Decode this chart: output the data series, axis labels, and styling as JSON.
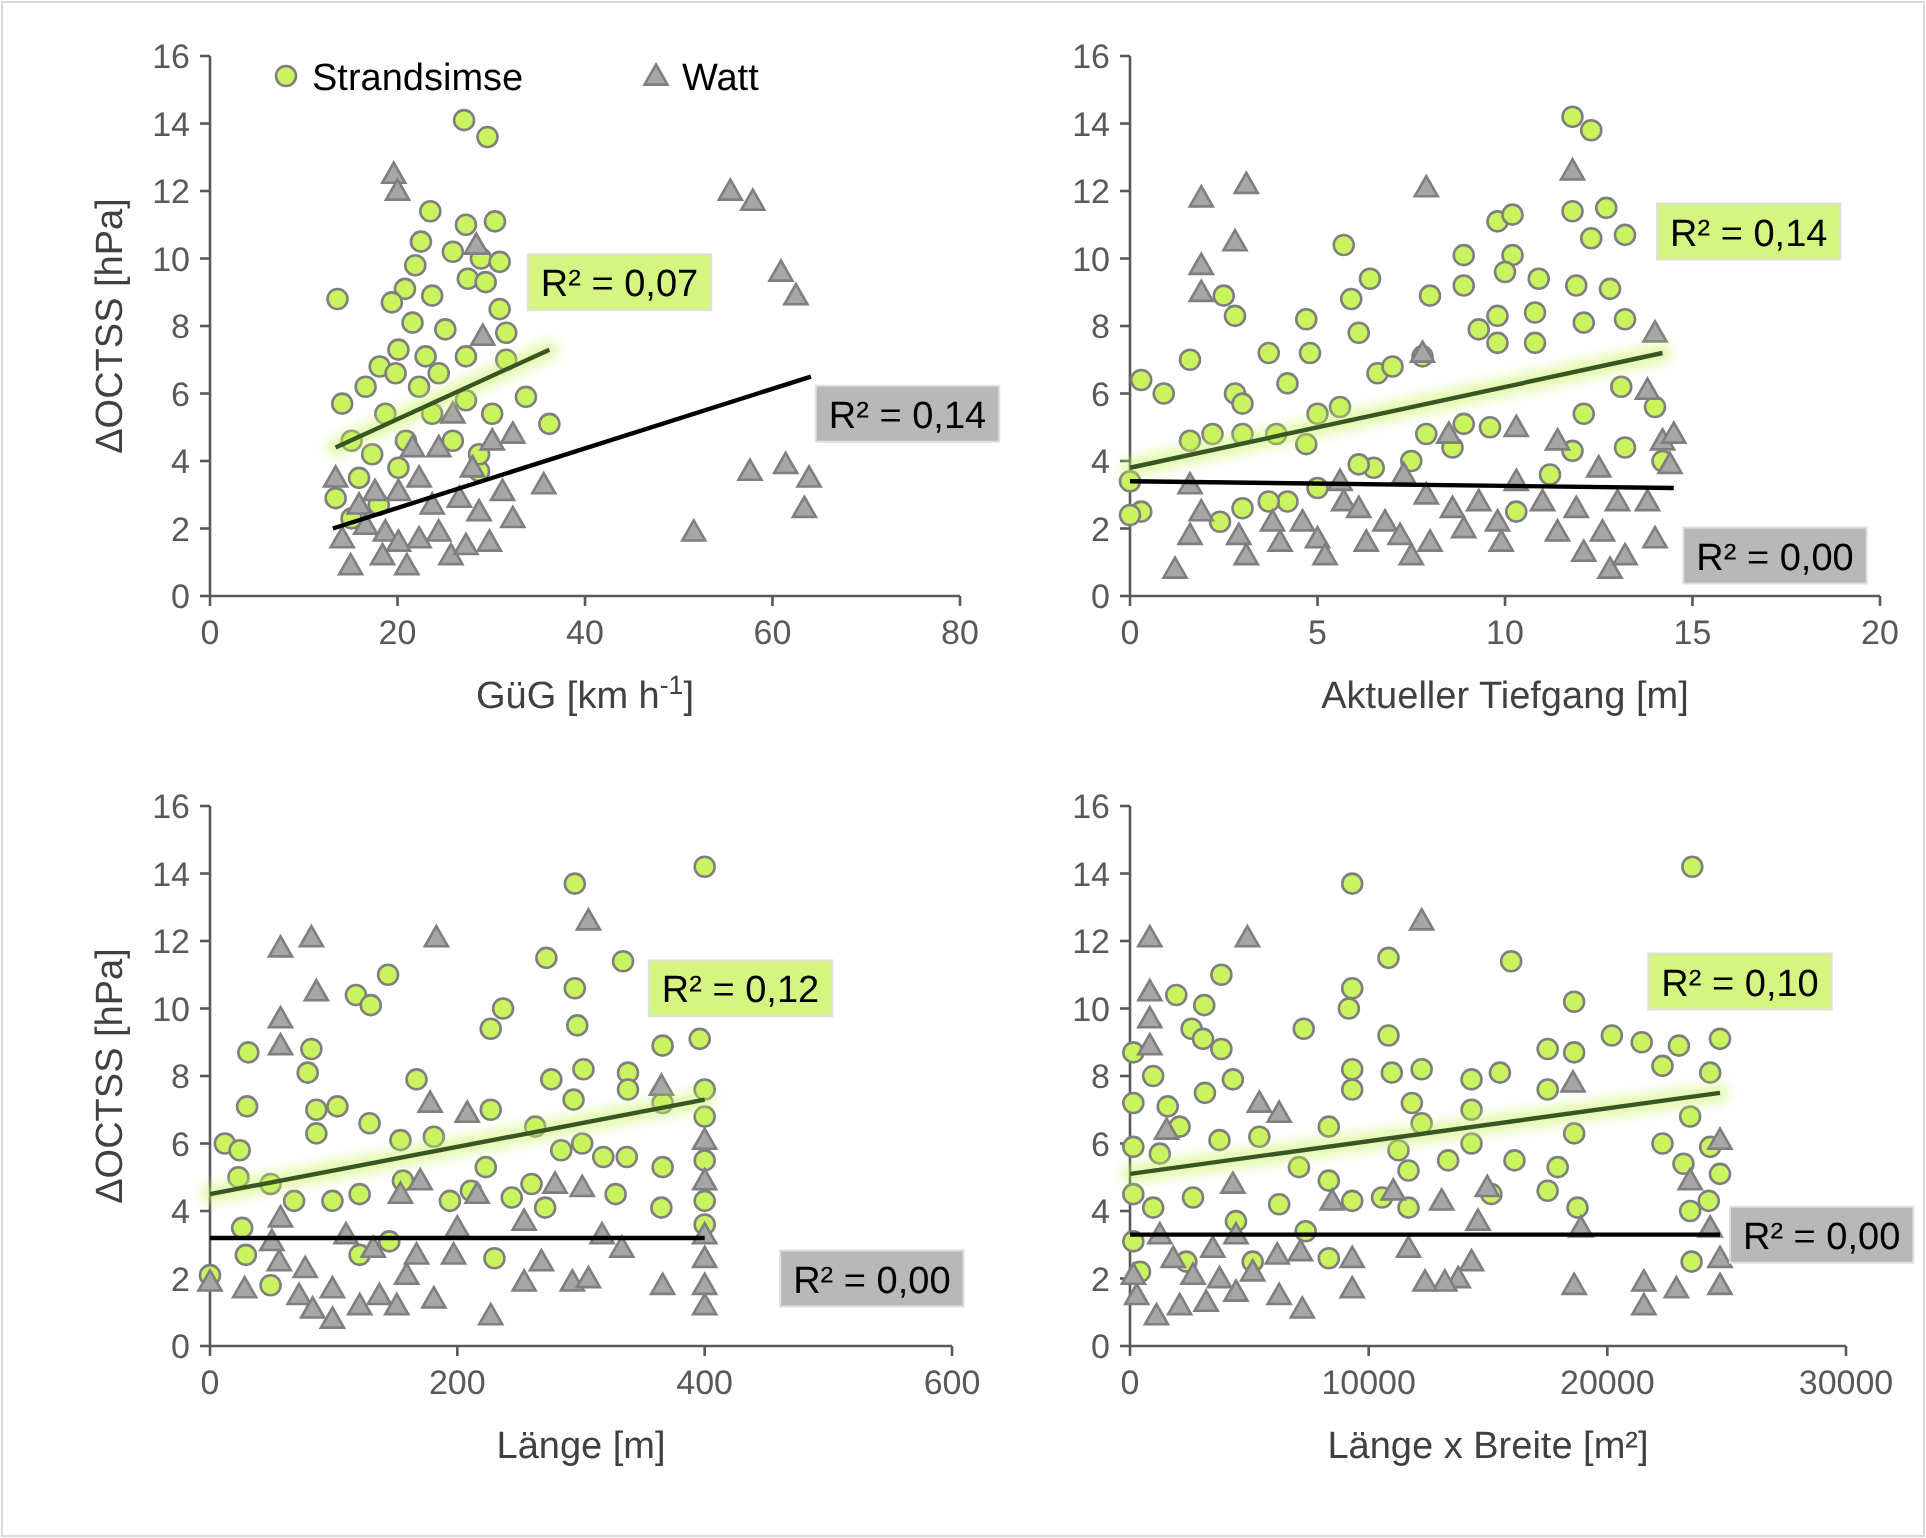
{
  "chart_data": [
    {
      "type": "scatter",
      "xlabel": "GüG [km h$^{-1}$]",
      "ylabel": "ΔOCTSS [hPa]",
      "xlim": [
        0,
        80
      ],
      "xticks": [
        0,
        20,
        40,
        60,
        80
      ],
      "ylim": [
        0,
        16
      ],
      "yticks": [
        0,
        2,
        4,
        6,
        8,
        10,
        12,
        14,
        16
      ],
      "legend": "top left",
      "grid": false,
      "series": [
        {
          "name": "Strandsimse",
          "type": "scatter",
          "marker": "circle",
          "color": "#c9f35f",
          "x": [
            27.1,
            29.6,
            13.6,
            23.5,
            27.3,
            30.4,
            22.5,
            25.9,
            28.9,
            30.9,
            21.9,
            27.5,
            20.8,
            29.4,
            19.4,
            23.7,
            30.9,
            31.6,
            25.1,
            21.6,
            18.1,
            20.1,
            27.3,
            31.6,
            33.7,
            36.2,
            14.1,
            15.1,
            17.3,
            13.4,
            15.9,
            20.1,
            23.7,
            25.9,
            28.7,
            18.7,
            22.3,
            24.4,
            30.1,
            16.6,
            15.1,
            18,
            20.9,
            27.3,
            23,
            28.7,
            19.8
          ],
          "values": [
            14.1,
            13.6,
            8.8,
            11.4,
            11,
            11.1,
            10.5,
            10.2,
            10,
            9.9,
            9.8,
            9.4,
            9.1,
            9.3,
            8.7,
            8.9,
            8.5,
            7.8,
            7.9,
            8.1,
            6.8,
            7.3,
            7.1,
            7,
            5.9,
            5.1,
            5.7,
            4.6,
            4.2,
            2.9,
            3.5,
            3.8,
            5.4,
            4.6,
            3.7,
            5.4,
            6.2,
            6.6,
            5.4,
            6.2,
            2.3,
            2.7,
            4.6,
            5.8,
            7.1,
            4.2,
            6.6
          ]
        },
        {
          "name": "Watt",
          "type": "scatter",
          "marker": "triangle",
          "color": "#a6a6a6",
          "x": [
            19.6,
            20,
            55.5,
            57.9,
            60.9,
            62.5,
            57.6,
            61.4,
            63.9,
            63.4,
            51.6,
            35.6,
            28.4,
            29.1,
            13.4,
            14.1,
            15,
            18.4,
            21,
            25.7,
            22.3,
            27.3,
            29.8,
            32.3,
            31.2,
            32.3,
            30.1,
            24.4,
            21.6,
            20.1,
            16.6,
            23.7,
            26.6,
            18.7,
            28.7,
            15.9,
            24.4,
            22.3,
            28,
            25.9,
            20.1,
            17.6
          ],
          "values": [
            12.5,
            12,
            12,
            11.7,
            9.6,
            8.9,
            3.7,
            3.9,
            3.5,
            2.6,
            1.9,
            3.3,
            10.4,
            7.7,
            3.5,
            1.7,
            0.9,
            1.2,
            0.9,
            1.2,
            1.7,
            1.5,
            1.6,
            2.3,
            3.1,
            4.8,
            4.6,
            4.4,
            4.4,
            3.1,
            2.1,
            2.7,
            2.9,
            1.9,
            2.5,
            2.7,
            1.9,
            3.5,
            3.8,
            5.4,
            1.6,
            3.1
          ]
        },
        {
          "type": "line",
          "color": "#375623",
          "x": [
            13.4,
            36.2
          ],
          "values": [
            4.4,
            7.3
          ]
        },
        {
          "type": "line",
          "color": "#000000",
          "x": [
            13.1,
            64.1
          ],
          "values": [
            2,
            6.5
          ]
        }
      ],
      "annotations": [
        "R² = 0,07",
        "R² = 0,14"
      ]
    },
    {
      "type": "scatter",
      "xlabel": "Aktueller Tiefgang [m]",
      "xlim": [
        0,
        20
      ],
      "xticks": [
        0,
        5,
        10,
        15,
        20
      ],
      "ylim": [
        0,
        16
      ],
      "yticks": [
        0,
        2,
        4,
        6,
        8,
        10,
        12,
        14,
        16
      ],
      "grid": false,
      "series": [
        {
          "type": "scatter",
          "marker": "circle",
          "color": "#c9f35f",
          "x": [
            11.8,
            12.3,
            11.8,
            12.7,
            12.3,
            13.2,
            9.8,
            10.2,
            10.2,
            10,
            10.9,
            8.9,
            8.9,
            5.7,
            6.4,
            5.9,
            6.1,
            2.5,
            2.8,
            1.6,
            3.7,
            4.7,
            4.8,
            4.2,
            0.3,
            0.9,
            2.8,
            3,
            1.6,
            2.2,
            3,
            3.9,
            4.7,
            5,
            5.6,
            6.6,
            7,
            8,
            7.8,
            9.3,
            9.8,
            9.8,
            10.8,
            10.8,
            11.9,
            12.1,
            12.8,
            13.2,
            13.1,
            14,
            14.2,
            13.2,
            12.1,
            11.8,
            11.2,
            10.3,
            8.9,
            7.9,
            7.5,
            6.5,
            6.1,
            5,
            4.2,
            3.7,
            2.4,
            0.3,
            0,
            0,
            3,
            8.6,
            9.6
          ],
          "values": [
            14.2,
            13.8,
            11.4,
            11.5,
            10.6,
            10.7,
            11.1,
            11.3,
            10.1,
            9.6,
            9.4,
            10.1,
            9.2,
            10.4,
            9.4,
            8.8,
            7.8,
            8.9,
            8.3,
            7,
            7.2,
            8.2,
            7.2,
            6.3,
            6.4,
            6,
            6,
            5.7,
            4.6,
            4.8,
            4.8,
            4.8,
            4.5,
            5.4,
            5.6,
            6.6,
            6.8,
            8.9,
            7.1,
            7.9,
            8.3,
            7.5,
            8.4,
            7.5,
            9.2,
            8.1,
            9.1,
            8.2,
            6.2,
            5.6,
            4,
            4.4,
            5.4,
            4.3,
            3.6,
            2.5,
            5.1,
            4.8,
            4,
            3.8,
            3.9,
            3.2,
            2.8,
            2.8,
            2.2,
            2.5,
            2.4,
            3.4,
            2.6,
            4.4,
            5
          ]
        },
        {
          "type": "scatter",
          "marker": "triangle",
          "color": "#a6a6a6",
          "x": [
            1.9,
            3.1,
            7.9,
            11.8,
            2.8,
            1.9,
            1.9,
            7.8,
            14,
            13.8,
            14.2,
            14.5,
            14.4,
            1.2,
            1.6,
            1.9,
            2.9,
            3.1,
            4,
            4.6,
            5,
            5.2,
            5.7,
            6.3,
            6.8,
            7.2,
            7.5,
            8,
            8.6,
            8.9,
            9.3,
            9.8,
            9.9,
            10.3,
            11,
            11.4,
            11.9,
            12.1,
            12.6,
            12.8,
            13.2,
            13,
            13.8,
            14,
            1.6,
            3.8,
            5.6,
            7.3,
            8.5,
            10.3,
            11.4,
            12.5,
            6.1,
            7.9
          ],
          "values": [
            11.8,
            12.2,
            12.1,
            12.6,
            10.5,
            9.8,
            9,
            7.2,
            7.8,
            6.1,
            4.6,
            4.8,
            3.9,
            0.8,
            1.8,
            2.5,
            1.8,
            1.2,
            1.6,
            2.2,
            1.7,
            1.2,
            2.8,
            1.6,
            2.2,
            1.8,
            1.2,
            1.6,
            2.6,
            2,
            2.8,
            2.2,
            1.6,
            3.4,
            2.8,
            1.9,
            2.6,
            1.3,
            1.9,
            0.8,
            1.2,
            2.8,
            2.8,
            1.7,
            3.3,
            2.2,
            3.4,
            3.6,
            4.8,
            5,
            4.6,
            3.8,
            2.6,
            3
          ]
        },
        {
          "type": "line",
          "color": "#375623",
          "x": [
            0,
            14.2
          ],
          "values": [
            3.8,
            7.2
          ]
        },
        {
          "type": "line",
          "color": "#000000",
          "x": [
            0,
            14.5
          ],
          "values": [
            3.4,
            3.2
          ]
        }
      ],
      "annotations": [
        "R² = 0,14",
        "R² = 0,00"
      ]
    },
    {
      "type": "scatter",
      "xlabel": "Länge [m]",
      "ylabel": "ΔOCTSS [hPa]",
      "xlim": [
        0,
        600
      ],
      "xticks": [
        0,
        200,
        400,
        600
      ],
      "ylim": [
        0,
        16
      ],
      "yticks": [
        0,
        2,
        4,
        6,
        8,
        10,
        12,
        14,
        16
      ],
      "grid": false,
      "series": [
        {
          "type": "scatter",
          "marker": "circle",
          "color": "#c9f35f",
          "x": [
            400,
            295,
            272,
            334,
            144,
            118,
            130,
            237,
            227,
            295,
            297,
            366,
            396,
            31,
            82,
            79,
            167,
            276,
            302,
            338,
            338,
            30,
            86,
            103,
            227,
            294,
            366,
            400,
            400,
            12,
            24,
            86,
            129,
            154,
            181,
            263,
            284,
            301,
            318,
            337,
            366,
            400,
            23,
            49,
            68,
            99,
            121,
            156,
            194,
            211,
            223,
            244,
            260,
            271,
            328,
            365,
            400,
            26,
            29,
            49,
            0,
            121,
            145,
            230,
            400
          ],
          "values": [
            14.2,
            13.7,
            11.5,
            11.4,
            11,
            10.4,
            10.1,
            10,
            9.4,
            10.6,
            9.5,
            8.9,
            9.1,
            8.7,
            8.8,
            8.1,
            7.9,
            7.9,
            8.2,
            8.1,
            7.6,
            7.1,
            7,
            7.1,
            7,
            7.3,
            7.2,
            7.6,
            6.8,
            6,
            5.8,
            6.3,
            6.6,
            6.1,
            6.2,
            6.5,
            5.8,
            6,
            5.6,
            5.6,
            5.3,
            5.5,
            5,
            4.8,
            4.3,
            4.3,
            4.5,
            4.9,
            4.3,
            4.6,
            5.3,
            4.4,
            4.8,
            4.1,
            4.5,
            4.1,
            4.3,
            3.5,
            2.7,
            1.8,
            2.1,
            2.7,
            3.1,
            2.6,
            3.6
          ]
        },
        {
          "type": "scatter",
          "marker": "triangle",
          "color": "#a6a6a6",
          "x": [
            57,
            82,
            183,
            306,
            86,
            57,
            57,
            178,
            208,
            365,
            400,
            400,
            0,
            28,
            57,
            56,
            72,
            83,
            99,
            99,
            121,
            137,
            151,
            159,
            167,
            181,
            197,
            227,
            254,
            268,
            279,
            293,
            306,
            333,
            366,
            400,
            400,
            400,
            400,
            301,
            254,
            216,
            200,
            132,
            110,
            77,
            50,
            154,
            317,
            170
          ],
          "values": [
            11.8,
            12.1,
            12.1,
            12.6,
            10.5,
            9.7,
            8.9,
            7.2,
            6.9,
            7.7,
            6.1,
            4.9,
            1.9,
            1.7,
            3.8,
            2.5,
            1.5,
            1.1,
            0.8,
            1.7,
            1.2,
            1.5,
            1.2,
            2.1,
            2.7,
            1.4,
            2.7,
            0.9,
            1.9,
            2.5,
            4.8,
            1.9,
            2,
            2.9,
            1.8,
            1.2,
            1.8,
            2.6,
            3.3,
            4.7,
            3.7,
            4.5,
            3.5,
            2.9,
            3.3,
            2.3,
            3.1,
            4.5,
            3.3,
            4.9
          ]
        },
        {
          "type": "line",
          "color": "#375623",
          "x": [
            0,
            400
          ],
          "values": [
            4.5,
            7.3
          ]
        },
        {
          "type": "line",
          "color": "#000000",
          "x": [
            0,
            400
          ],
          "values": [
            3.2,
            3.2
          ]
        }
      ],
      "annotations": [
        "R² = 0,12",
        "R² = 0,00"
      ]
    },
    {
      "type": "scatter",
      "xlabel": "Länge x Breite [m²]",
      "xlim": [
        0,
        30000
      ],
      "xticks": [
        0,
        10000,
        20000,
        30000
      ],
      "ylim": [
        0,
        16
      ],
      "yticks": [
        0,
        2,
        4,
        6,
        8,
        10,
        12,
        14,
        16
      ],
      "grid": false,
      "series": [
        {
          "type": "scatter",
          "marker": "circle",
          "color": "#c9f35f",
          "x": [
            23560,
            9310,
            10830,
            15970,
            3830,
            1940,
            3110,
            9310,
            9170,
            7280,
            10830,
            18610,
            2580,
            3060,
            20190,
            21440,
            23000,
            24720,
            140,
            970,
            3830,
            4310,
            9310,
            10970,
            12220,
            14310,
            15500,
            17500,
            17500,
            18610,
            22310,
            24310,
            140,
            1580,
            3140,
            9310,
            11810,
            12220,
            14310,
            18610,
            23470,
            140,
            1250,
            2080,
            3750,
            5420,
            7080,
            8330,
            11250,
            13330,
            14310,
            16110,
            17920,
            22310,
            23190,
            24310,
            24720,
            140,
            970,
            2640,
            4440,
            6250,
            8330,
            9310,
            10560,
            11670,
            11670,
            15140,
            17500,
            18750,
            23470,
            24250,
            140,
            420,
            2360,
            5140,
            8330,
            23530,
            7360
          ],
          "values": [
            14.2,
            13.7,
            11.5,
            11.4,
            11,
            10.4,
            10.1,
            10.6,
            10,
            9.4,
            9.2,
            10.2,
            9.4,
            9.1,
            9.2,
            9,
            8.9,
            9.1,
            8.7,
            8,
            8.8,
            7.9,
            8.2,
            8.1,
            8.2,
            7.9,
            8.1,
            8.8,
            7.6,
            8.7,
            8.3,
            8.1,
            7.2,
            7.1,
            7.5,
            7.6,
            7.2,
            6.6,
            7,
            6.3,
            6.8,
            5.9,
            5.7,
            6.5,
            6.1,
            6.2,
            5.3,
            6.5,
            5.8,
            5.5,
            6,
            5.5,
            5.3,
            6,
            5.4,
            5.9,
            5.1,
            4.5,
            4.1,
            4.4,
            3.7,
            4.2,
            4.9,
            4.3,
            4.4,
            5.2,
            4.1,
            4.5,
            4.6,
            4.1,
            4,
            4.3,
            3.1,
            2.2,
            2.5,
            2.5,
            2.6,
            2.5,
            3.4
          ]
        },
        {
          "type": "scatter",
          "marker": "triangle",
          "color": "#a6a6a6",
          "x": [
            830,
            4920,
            12220,
            830,
            830,
            830,
            5420,
            6250,
            18560,
            24720,
            23470,
            24720,
            24720,
            22890,
            21530,
            21530,
            18610,
            14310,
            13750,
            13190,
            12360,
            11670,
            9310,
            9310,
            7220,
            6250,
            7140,
            6170,
            5140,
            4440,
            3190,
            2080,
            1110,
            280,
            140,
            1810,
            2640,
            3750,
            3470,
            1250,
            4440,
            8470,
            11030,
            13060,
            14970,
            14580,
            18890,
            24310,
            1530,
            4310
          ],
          "values": [
            12.1,
            12.1,
            12.6,
            10.5,
            9.7,
            8.9,
            7.2,
            6.9,
            7.8,
            6.1,
            4.9,
            2.6,
            1.8,
            1.7,
            1.9,
            1.2,
            1.8,
            2.5,
            2,
            1.9,
            1.9,
            2.9,
            2.6,
            1.7,
            1.1,
            1.5,
            2.8,
            2.7,
            2.2,
            1.6,
            1.3,
            1.2,
            0.9,
            1.5,
            2.1,
            2.6,
            2.1,
            2,
            2.9,
            3.3,
            3.3,
            4.3,
            4.6,
            4.3,
            4.7,
            3.7,
            3.5,
            3.5,
            6.4,
            4.8
          ]
        },
        {
          "type": "line",
          "color": "#375623",
          "x": [
            0,
            24720
          ],
          "values": [
            5.1,
            7.5
          ]
        },
        {
          "type": "line",
          "color": "#000000",
          "x": [
            0,
            24720
          ],
          "values": [
            3.3,
            3.3
          ]
        }
      ],
      "annotations": [
        "R² = 0,10",
        "R² = 0,00"
      ]
    }
  ]
}
